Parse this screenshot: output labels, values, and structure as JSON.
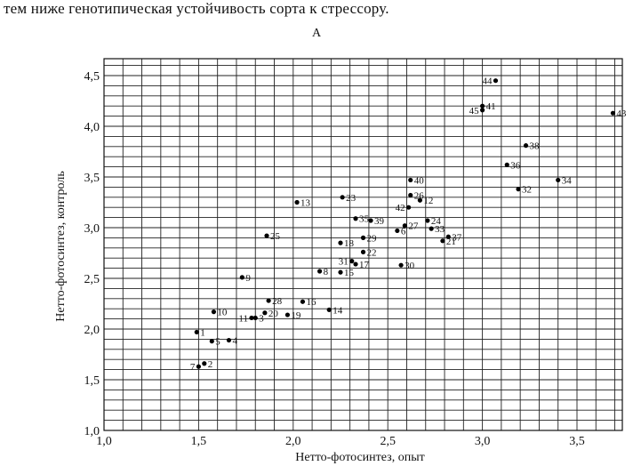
{
  "header_text": "тем ниже генотипическая устойчивость сорта к стрессору.",
  "panel_label": "А",
  "chart_data": {
    "type": "scatter",
    "title": "",
    "xlabel": "Нетто-фотосинтез, опыт",
    "ylabel": "Нетто-фотосинтез, контроль",
    "xlim": [
      1.0,
      3.75
    ],
    "ylim": [
      1.0,
      4.7
    ],
    "grid": true,
    "x_ticks": [
      "1,0",
      "1,5",
      "2,0",
      "2,5",
      "3,0",
      "3,5"
    ],
    "y_ticks": [
      "1,0",
      "1,5",
      "2,0",
      "2,5",
      "3,0",
      "3,5",
      "4,0",
      "4,5"
    ],
    "points": [
      {
        "label": "1",
        "x": 1.49,
        "y": 1.97
      },
      {
        "label": "2",
        "x": 1.53,
        "y": 1.66
      },
      {
        "label": "3",
        "x": 1.8,
        "y": 2.11
      },
      {
        "label": "4",
        "x": 1.66,
        "y": 1.89
      },
      {
        "label": "5",
        "x": 1.57,
        "y": 1.88
      },
      {
        "label": "6",
        "x": 2.55,
        "y": 2.97
      },
      {
        "label": "7",
        "x": 1.5,
        "y": 1.63
      },
      {
        "label": "8",
        "x": 2.14,
        "y": 2.57
      },
      {
        "label": "9",
        "x": 1.73,
        "y": 2.51
      },
      {
        "label": "10",
        "x": 1.58,
        "y": 2.17
      },
      {
        "label": "11",
        "x": 1.78,
        "y": 2.11
      },
      {
        "label": "12",
        "x": 2.67,
        "y": 3.27
      },
      {
        "label": "13",
        "x": 2.02,
        "y": 3.25
      },
      {
        "label": "14",
        "x": 2.19,
        "y": 2.19
      },
      {
        "label": "15",
        "x": 2.25,
        "y": 2.56
      },
      {
        "label": "16",
        "x": 2.05,
        "y": 2.27
      },
      {
        "label": "17",
        "x": 2.33,
        "y": 2.64
      },
      {
        "label": "18",
        "x": 2.25,
        "y": 2.85
      },
      {
        "label": "19",
        "x": 1.97,
        "y": 2.14
      },
      {
        "label": "20",
        "x": 1.85,
        "y": 2.16
      },
      {
        "label": "21",
        "x": 2.79,
        "y": 2.87
      },
      {
        "label": "22",
        "x": 2.37,
        "y": 2.76
      },
      {
        "label": "23",
        "x": 2.26,
        "y": 3.3
      },
      {
        "label": "24",
        "x": 2.71,
        "y": 3.07
      },
      {
        "label": "25",
        "x": 1.86,
        "y": 2.92
      },
      {
        "label": "26",
        "x": 2.62,
        "y": 3.32
      },
      {
        "label": "27",
        "x": 2.59,
        "y": 3.02
      },
      {
        "label": "28",
        "x": 1.87,
        "y": 2.28
      },
      {
        "label": "29",
        "x": 2.37,
        "y": 2.9
      },
      {
        "label": "30",
        "x": 2.57,
        "y": 2.63
      },
      {
        "label": "31",
        "x": 2.31,
        "y": 2.67
      },
      {
        "label": "32",
        "x": 3.19,
        "y": 3.38
      },
      {
        "label": "33",
        "x": 2.73,
        "y": 2.99
      },
      {
        "label": "34",
        "x": 3.4,
        "y": 3.47
      },
      {
        "label": "35",
        "x": 2.33,
        "y": 3.09
      },
      {
        "label": "36",
        "x": 3.13,
        "y": 3.62
      },
      {
        "label": "37",
        "x": 2.82,
        "y": 2.91
      },
      {
        "label": "38",
        "x": 3.23,
        "y": 3.81
      },
      {
        "label": "39",
        "x": 2.41,
        "y": 3.07
      },
      {
        "label": "40",
        "x": 2.62,
        "y": 3.47
      },
      {
        "label": "41",
        "x": 3.0,
        "y": 4.2
      },
      {
        "label": "42",
        "x": 2.61,
        "y": 3.2
      },
      {
        "label": "43",
        "x": 3.69,
        "y": 4.13
      },
      {
        "label": "44",
        "x": 3.07,
        "y": 4.45
      },
      {
        "label": "45",
        "x": 3.0,
        "y": 4.16
      }
    ]
  }
}
